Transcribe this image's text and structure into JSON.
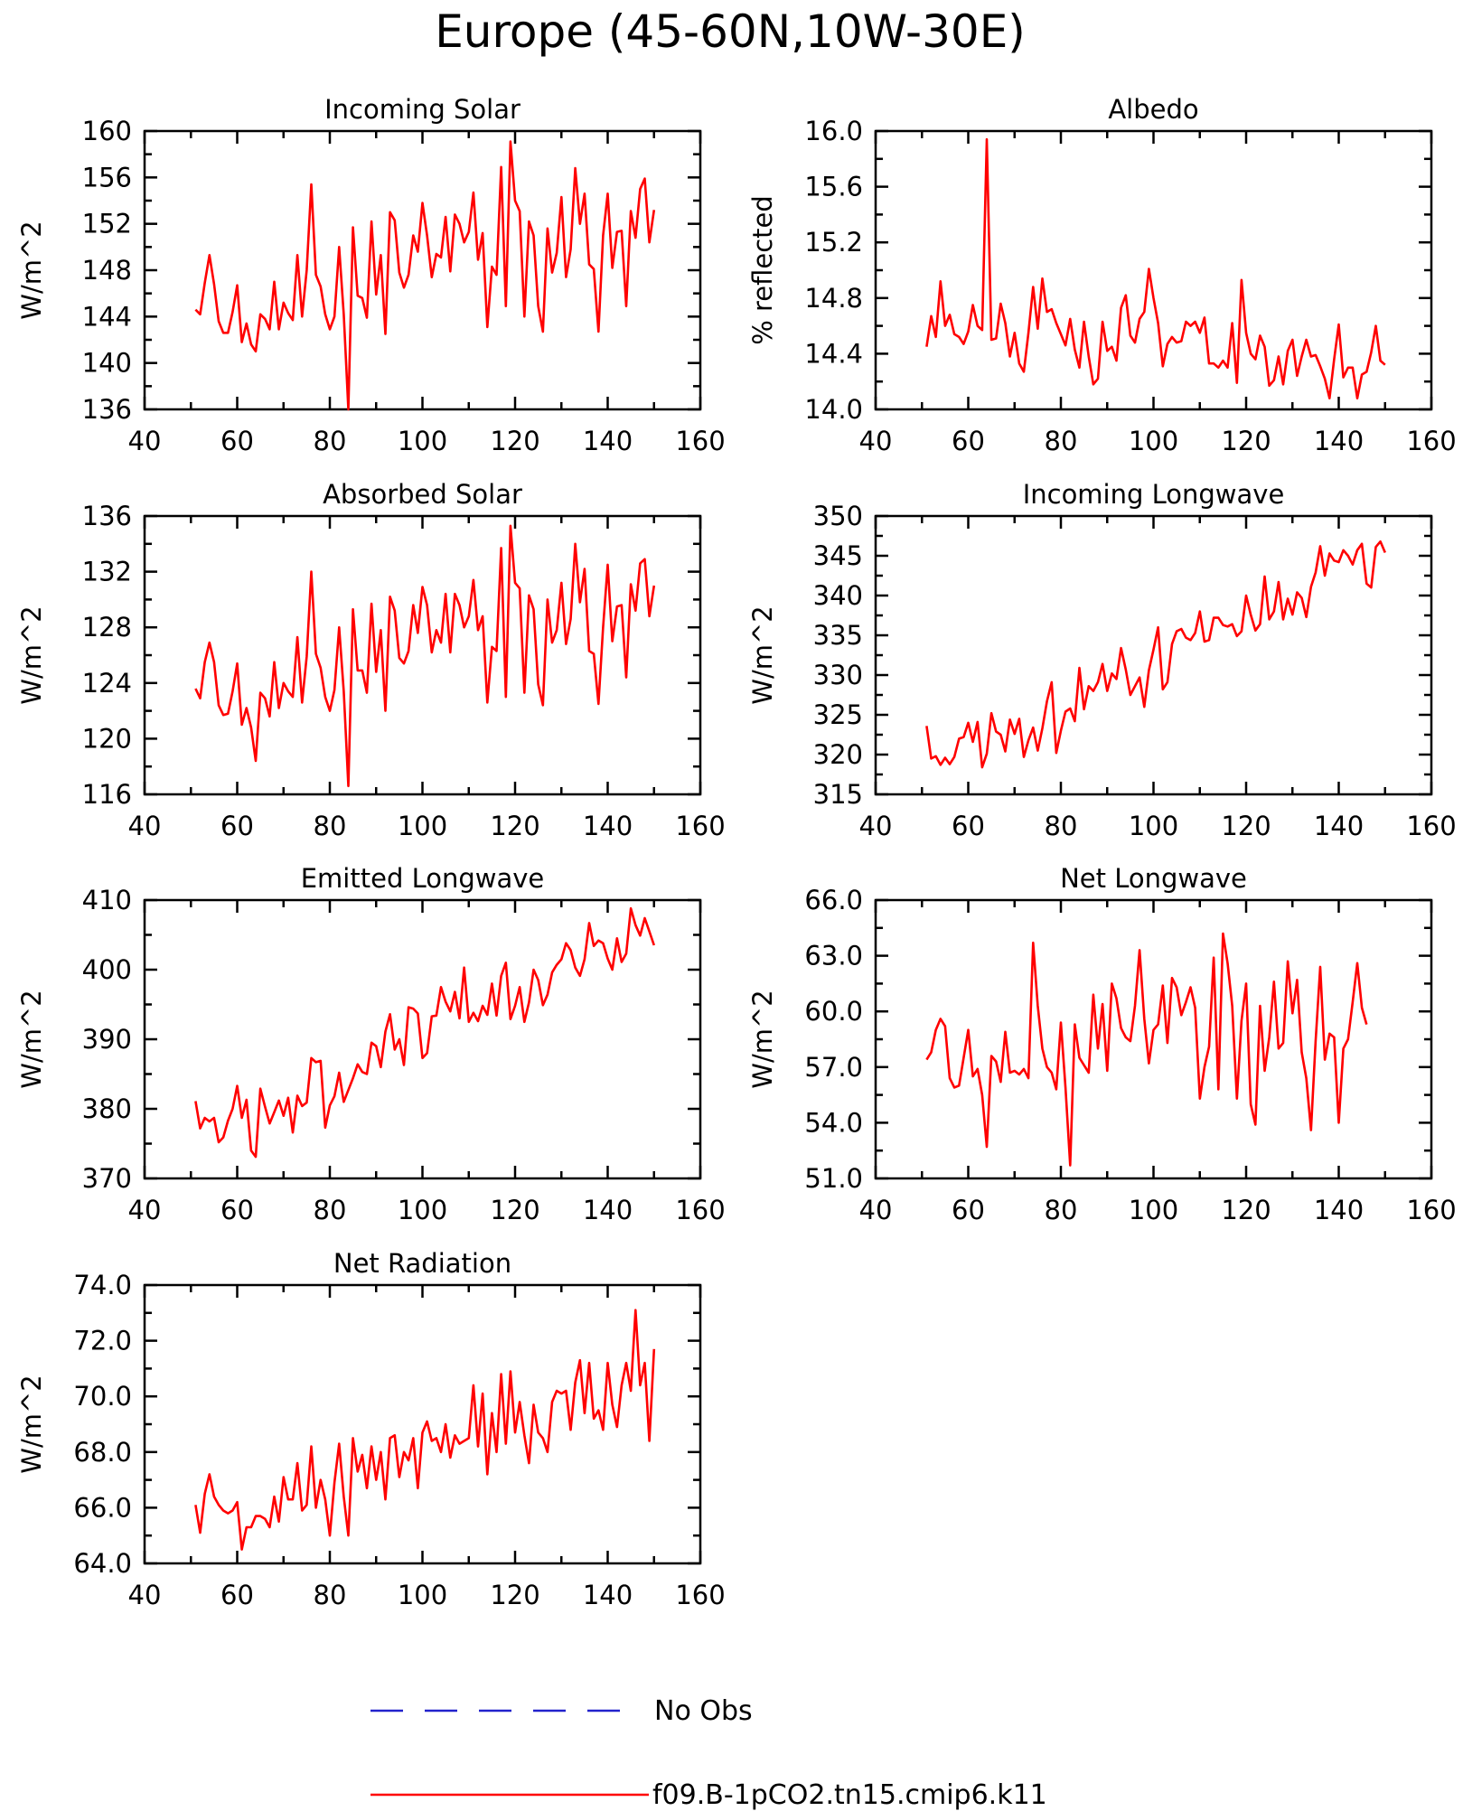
{
  "page_title": "Europe (45-60N,10W-30E)",
  "colors": {
    "model": "#ff0000",
    "obs": "#2222cc",
    "axis": "#000000"
  },
  "legend": {
    "obs_label": "No Obs",
    "model_label": "f09.B-1pCO2.tn15.cmip6.k11"
  },
  "chart_data": [
    {
      "type": "line",
      "title": "Incoming Solar",
      "ylabel": "W/m^2",
      "xlim": [
        40,
        160
      ],
      "ylim": [
        136,
        160
      ],
      "xticks": [
        "40",
        "60",
        "80",
        "100",
        "120",
        "140",
        "160"
      ],
      "yticks": [
        "136",
        "140",
        "144",
        "148",
        "152",
        "156",
        "160"
      ],
      "x_start": 51,
      "values": [
        144.6,
        144.2,
        146.9,
        149.3,
        146.8,
        143.6,
        142.6,
        142.6,
        144.4,
        146.7,
        141.8,
        143.4,
        141.6,
        141.0,
        144.2,
        143.8,
        142.9,
        147.0,
        142.9,
        145.2,
        144.3,
        143.7,
        149.3,
        144.0,
        148.0,
        155.4,
        147.6,
        146.6,
        144.2,
        142.9,
        144.0,
        150.0,
        144.2,
        136.0,
        151.7,
        145.8,
        145.6,
        143.9,
        152.2,
        145.9,
        149.3,
        142.5,
        153.0,
        152.3,
        147.8,
        146.5,
        147.6,
        151.0,
        149.6,
        153.8,
        151.0,
        147.4,
        149.4,
        149.1,
        152.6,
        147.9,
        152.8,
        152.0,
        150.4,
        151.3,
        154.7,
        148.9,
        151.2,
        143.1,
        148.3,
        147.6,
        156.9,
        144.9,
        159.1,
        154.0,
        153.1,
        144.0,
        152.2,
        151.0,
        144.9,
        142.7,
        151.6,
        147.8,
        149.5,
        154.3,
        147.4,
        149.8,
        156.8,
        152.0,
        154.6,
        148.5,
        148.1,
        142.7,
        151.0,
        154.6,
        148.2,
        151.3,
        151.4,
        144.9,
        153.1,
        150.8,
        155.0,
        155.9,
        150.4,
        153.2
      ]
    },
    {
      "type": "line",
      "title": "Albedo",
      "ylabel": "% reflected",
      "xlim": [
        40,
        160
      ],
      "ylim": [
        14.0,
        16.0
      ],
      "xticks": [
        "40",
        "60",
        "80",
        "100",
        "120",
        "140",
        "160"
      ],
      "yticks": [
        "14.0",
        "14.4",
        "14.8",
        "15.2",
        "15.6",
        "16.0"
      ],
      "x_start": 51,
      "values": [
        14.45,
        14.67,
        14.52,
        14.92,
        14.6,
        14.68,
        14.54,
        14.52,
        14.47,
        14.56,
        14.75,
        14.6,
        14.57,
        15.94,
        14.5,
        14.51,
        14.76,
        14.62,
        14.38,
        14.55,
        14.33,
        14.27,
        14.55,
        14.88,
        14.58,
        14.94,
        14.7,
        14.72,
        14.62,
        14.54,
        14.46,
        14.65,
        14.43,
        14.3,
        14.63,
        14.38,
        14.18,
        14.22,
        14.63,
        14.42,
        14.45,
        14.35,
        14.73,
        14.82,
        14.53,
        14.48,
        14.65,
        14.7,
        15.01,
        14.8,
        14.62,
        14.31,
        14.47,
        14.52,
        14.48,
        14.49,
        14.63,
        14.6,
        14.63,
        14.55,
        14.66,
        14.33,
        14.33,
        14.3,
        14.35,
        14.3,
        14.62,
        14.19,
        14.93,
        14.55,
        14.4,
        14.36,
        14.53,
        14.45,
        14.17,
        14.21,
        14.38,
        14.18,
        14.42,
        14.5,
        14.24,
        14.38,
        14.5,
        14.38,
        14.39,
        14.31,
        14.22,
        14.08,
        14.36,
        14.61,
        14.23,
        14.3,
        14.3,
        14.08,
        14.25,
        14.27,
        14.41,
        14.6,
        14.35,
        14.32
      ]
    },
    {
      "type": "line",
      "title": "Absorbed Solar",
      "ylabel": "W/m^2",
      "xlim": [
        40,
        160
      ],
      "ylim": [
        116,
        136
      ],
      "xticks": [
        "40",
        "60",
        "80",
        "100",
        "120",
        "140",
        "160"
      ],
      "yticks": [
        "116",
        "120",
        "124",
        "128",
        "132",
        "136"
      ],
      "x_start": 51,
      "values": [
        123.6,
        122.9,
        125.5,
        126.9,
        125.5,
        122.4,
        121.7,
        121.8,
        123.4,
        125.4,
        121.0,
        122.2,
        120.8,
        118.4,
        123.3,
        122.9,
        121.6,
        125.5,
        122.2,
        124.0,
        123.4,
        123.0,
        127.3,
        122.6,
        125.9,
        132.0,
        126.1,
        125.1,
        123.0,
        122.0,
        123.5,
        128.0,
        123.4,
        116.6,
        129.3,
        124.9,
        124.9,
        123.3,
        129.7,
        124.8,
        127.8,
        122.0,
        130.2,
        129.2,
        125.8,
        125.4,
        126.3,
        129.6,
        127.6,
        130.9,
        129.6,
        126.2,
        127.8,
        126.9,
        130.4,
        126.2,
        130.4,
        129.6,
        128.0,
        128.8,
        131.4,
        127.8,
        128.8,
        122.6,
        126.6,
        126.3,
        133.7,
        123.0,
        135.3,
        131.2,
        130.8,
        123.3,
        130.3,
        129.3,
        123.9,
        122.4,
        130.0,
        126.9,
        127.8,
        131.2,
        126.8,
        128.6,
        134.0,
        129.8,
        132.2,
        126.3,
        126.1,
        122.5,
        128.0,
        132.5,
        127.0,
        129.5,
        129.6,
        124.4,
        131.1,
        129.2,
        132.6,
        132.9,
        128.8,
        131.0
      ]
    },
    {
      "type": "line",
      "title": "Incoming Longwave",
      "ylabel": "W/m^2",
      "xlim": [
        40,
        160
      ],
      "ylim": [
        315,
        350
      ],
      "xticks": [
        "40",
        "60",
        "80",
        "100",
        "120",
        "140",
        "160"
      ],
      "yticks": [
        "315",
        "320",
        "325",
        "330",
        "335",
        "340",
        "345",
        "350"
      ],
      "x_start": 51,
      "values": [
        323.6,
        319.5,
        319.8,
        318.7,
        319.6,
        318.8,
        319.7,
        322.0,
        322.2,
        324.0,
        321.6,
        324.1,
        318.4,
        320.1,
        325.2,
        322.9,
        322.5,
        320.4,
        324.4,
        322.6,
        324.5,
        319.7,
        321.8,
        323.4,
        320.5,
        323.3,
        326.7,
        329.1,
        320.2,
        323.0,
        325.4,
        325.8,
        324.2,
        330.9,
        325.7,
        328.6,
        328.0,
        329.1,
        331.4,
        328.0,
        330.2,
        329.5,
        333.4,
        330.7,
        327.5,
        328.6,
        329.7,
        326.0,
        330.6,
        333.2,
        336.0,
        328.2,
        329.1,
        333.9,
        335.5,
        335.8,
        334.7,
        334.4,
        335.3,
        338.0,
        334.2,
        334.4,
        337.2,
        337.2,
        336.3,
        336.1,
        336.4,
        334.9,
        335.5,
        340.0,
        337.6,
        335.6,
        336.4,
        342.4,
        337.0,
        338.0,
        341.7,
        337.0,
        339.6,
        337.6,
        340.4,
        339.7,
        337.3,
        341.1,
        342.9,
        346.2,
        342.5,
        345.3,
        344.4,
        344.2,
        345.7,
        345.0,
        343.9,
        345.7,
        346.5,
        341.5,
        341.0,
        346.1,
        346.8,
        345.4
      ]
    },
    {
      "type": "line",
      "title": "Emitted Longwave",
      "ylabel": "W/m^2",
      "xlim": [
        40,
        160
      ],
      "ylim": [
        370,
        410
      ],
      "xticks": [
        "40",
        "60",
        "80",
        "100",
        "120",
        "140",
        "160"
      ],
      "yticks": [
        "370",
        "380",
        "390",
        "400",
        "410"
      ],
      "x_start": 51,
      "values": [
        381.1,
        377.2,
        378.7,
        378.2,
        378.7,
        375.2,
        375.9,
        378.3,
        380.0,
        383.3,
        378.7,
        381.3,
        374.0,
        373.1,
        382.9,
        380.3,
        377.9,
        379.5,
        381.2,
        379.0,
        381.6,
        376.6,
        381.9,
        380.4,
        380.9,
        387.3,
        386.7,
        386.9,
        377.3,
        380.5,
        381.8,
        385.2,
        381.0,
        382.7,
        384.4,
        386.4,
        385.3,
        385.0,
        389.5,
        389.0,
        386.0,
        391.1,
        393.6,
        388.5,
        390.0,
        386.3,
        394.6,
        394.4,
        393.7,
        387.3,
        388.0,
        393.3,
        393.4,
        397.5,
        395.4,
        394.0,
        396.8,
        393.0,
        400.3,
        392.5,
        393.8,
        392.6,
        394.8,
        393.5,
        398.0,
        393.4,
        399.1,
        401.0,
        392.9,
        394.8,
        397.5,
        392.5,
        395.3,
        400.0,
        398.5,
        394.9,
        396.4,
        399.6,
        400.7,
        401.5,
        403.8,
        402.8,
        400.3,
        399.1,
        401.5,
        406.7,
        403.4,
        404.2,
        403.8,
        401.6,
        400.0,
        404.5,
        401.1,
        402.3,
        408.8,
        406.4,
        404.9,
        407.4,
        405.5,
        403.5
      ]
    },
    {
      "type": "line",
      "title": "Net Longwave",
      "ylabel": "W/m^2",
      "xlim": [
        40,
        160
      ],
      "ylim": [
        51.0,
        66.0
      ],
      "xticks": [
        "40",
        "60",
        "80",
        "100",
        "120",
        "140",
        "160"
      ],
      "yticks": [
        "51.0",
        "54.0",
        "57.0",
        "60.0",
        "63.0",
        "66.0"
      ],
      "x_start": 51,
      "values": [
        57.4,
        57.8,
        59.0,
        59.6,
        59.2,
        56.4,
        55.9,
        56.0,
        57.5,
        59.0,
        56.5,
        56.9,
        55.5,
        52.7,
        57.6,
        57.3,
        56.2,
        58.9,
        56.7,
        56.8,
        56.6,
        56.9,
        56.4,
        63.7,
        60.3,
        58.0,
        57.0,
        56.7,
        55.8,
        59.4,
        55.9,
        51.7,
        59.3,
        57.5,
        57.1,
        56.7,
        60.9,
        58.0,
        60.4,
        56.8,
        61.5,
        60.7,
        59.1,
        58.6,
        58.4,
        60.3,
        63.3,
        59.6,
        57.2,
        59.0,
        59.3,
        61.4,
        58.3,
        61.8,
        61.3,
        59.8,
        60.5,
        61.3,
        60.2,
        55.3,
        57.0,
        58.1,
        62.9,
        55.8,
        64.2,
        62.6,
        60.3,
        55.3,
        59.5,
        61.5,
        55.0,
        53.9,
        60.3,
        56.8,
        58.6,
        61.6,
        58.0,
        58.3,
        62.7,
        59.9,
        61.7,
        57.8,
        56.4,
        53.6,
        58.4,
        62.4,
        57.4,
        58.8,
        58.6,
        54.0,
        58.0,
        58.5,
        60.5,
        62.6,
        60.2,
        59.3
      ]
    },
    {
      "type": "line",
      "title": "Net Radiation",
      "ylabel": "W/m^2",
      "xlim": [
        40,
        160
      ],
      "ylim": [
        64.0,
        74.0
      ],
      "xticks": [
        "40",
        "60",
        "80",
        "100",
        "120",
        "140",
        "160"
      ],
      "yticks": [
        "64.0",
        "66.0",
        "68.0",
        "70.0",
        "72.0",
        "74.0"
      ],
      "x_start": 51,
      "values": [
        66.1,
        65.1,
        66.5,
        67.2,
        66.4,
        66.1,
        65.9,
        65.8,
        65.9,
        66.2,
        64.5,
        65.3,
        65.3,
        65.7,
        65.7,
        65.6,
        65.3,
        66.4,
        65.5,
        67.1,
        66.3,
        66.3,
        67.6,
        65.9,
        66.1,
        68.2,
        66.0,
        67.0,
        66.3,
        65.0,
        66.9,
        68.3,
        66.4,
        65.0,
        68.5,
        67.3,
        67.9,
        66.7,
        68.2,
        67.0,
        68.0,
        66.3,
        68.5,
        68.6,
        67.1,
        68.0,
        67.7,
        68.5,
        66.7,
        68.7,
        69.1,
        68.4,
        68.5,
        68.0,
        69.0,
        67.8,
        68.6,
        68.3,
        68.4,
        68.5,
        70.4,
        68.2,
        70.1,
        67.2,
        69.4,
        68.0,
        70.8,
        68.3,
        70.9,
        68.7,
        69.8,
        68.6,
        67.6,
        69.7,
        68.7,
        68.5,
        68.0,
        69.8,
        70.2,
        70.1,
        70.2,
        68.8,
        70.5,
        71.3,
        69.4,
        71.2,
        69.2,
        69.5,
        68.8,
        71.2,
        69.7,
        68.9,
        70.4,
        71.2,
        70.2,
        73.1,
        70.4,
        71.2,
        68.4,
        71.7
      ]
    }
  ]
}
